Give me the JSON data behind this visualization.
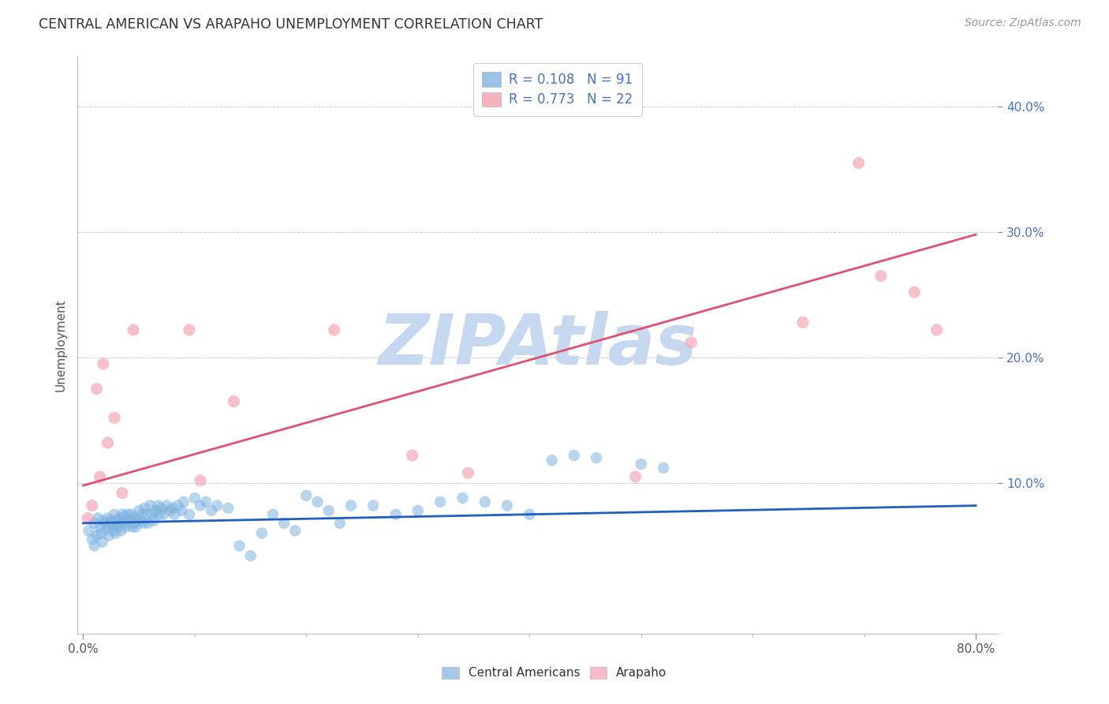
{
  "title": "CENTRAL AMERICAN VS ARAPAHO UNEMPLOYMENT CORRELATION CHART",
  "source": "Source: ZipAtlas.com",
  "ylabel": "Unemployment",
  "xlim": [
    -0.005,
    0.82
  ],
  "ylim": [
    -0.02,
    0.44
  ],
  "ytick_vals": [
    0.1,
    0.2,
    0.3,
    0.4
  ],
  "ytick_labels": [
    "10.0%",
    "20.0%",
    "30.0%",
    "40.0%"
  ],
  "grid_color": "#cccccc",
  "watermark": "ZIPAtlas",
  "watermark_color": "#c5d8f0",
  "blue_R": 0.108,
  "blue_N": 91,
  "pink_R": 0.773,
  "pink_N": 22,
  "blue_color": "#7fb3e0",
  "pink_color": "#f4a0b0",
  "blue_line_color": "#2060c0",
  "pink_line_color": "#e05070",
  "legend_label_blue": "Central Americans",
  "legend_label_pink": "Arapaho",
  "legend_text_color": "#4472c4",
  "blue_scatter_x": [
    0.005,
    0.008,
    0.01,
    0.01,
    0.012,
    0.013,
    0.015,
    0.016,
    0.017,
    0.018,
    0.02,
    0.021,
    0.022,
    0.023,
    0.024,
    0.025,
    0.026,
    0.027,
    0.028,
    0.029,
    0.03,
    0.031,
    0.032,
    0.033,
    0.034,
    0.035,
    0.036,
    0.037,
    0.038,
    0.04,
    0.041,
    0.042,
    0.043,
    0.044,
    0.045,
    0.046,
    0.047,
    0.048,
    0.05,
    0.052,
    0.053,
    0.054,
    0.055,
    0.057,
    0.058,
    0.06,
    0.062,
    0.063,
    0.065,
    0.067,
    0.068,
    0.07,
    0.072,
    0.075,
    0.078,
    0.08,
    0.082,
    0.085,
    0.088,
    0.09,
    0.095,
    0.1,
    0.105,
    0.11,
    0.115,
    0.12,
    0.13,
    0.14,
    0.15,
    0.16,
    0.17,
    0.18,
    0.19,
    0.2,
    0.21,
    0.22,
    0.23,
    0.24,
    0.26,
    0.28,
    0.3,
    0.32,
    0.34,
    0.36,
    0.38,
    0.4,
    0.42,
    0.44,
    0.46,
    0.5,
    0.52
  ],
  "blue_scatter_y": [
    0.062,
    0.055,
    0.068,
    0.05,
    0.058,
    0.072,
    0.065,
    0.06,
    0.053,
    0.07,
    0.068,
    0.063,
    0.072,
    0.058,
    0.065,
    0.07,
    0.068,
    0.062,
    0.075,
    0.06,
    0.07,
    0.065,
    0.072,
    0.068,
    0.062,
    0.075,
    0.068,
    0.073,
    0.065,
    0.075,
    0.07,
    0.068,
    0.075,
    0.065,
    0.072,
    0.068,
    0.065,
    0.072,
    0.078,
    0.07,
    0.075,
    0.068,
    0.08,
    0.075,
    0.068,
    0.082,
    0.075,
    0.07,
    0.078,
    0.082,
    0.075,
    0.08,
    0.075,
    0.082,
    0.078,
    0.08,
    0.075,
    0.082,
    0.078,
    0.085,
    0.075,
    0.088,
    0.082,
    0.085,
    0.078,
    0.082,
    0.08,
    0.05,
    0.042,
    0.06,
    0.075,
    0.068,
    0.062,
    0.09,
    0.085,
    0.078,
    0.068,
    0.082,
    0.082,
    0.075,
    0.078,
    0.085,
    0.088,
    0.085,
    0.082,
    0.075,
    0.118,
    0.122,
    0.12,
    0.115,
    0.112
  ],
  "pink_scatter_x": [
    0.004,
    0.008,
    0.012,
    0.015,
    0.018,
    0.022,
    0.028,
    0.035,
    0.045,
    0.095,
    0.105,
    0.135,
    0.225,
    0.295,
    0.345,
    0.495,
    0.545,
    0.645,
    0.695,
    0.715,
    0.745,
    0.765
  ],
  "pink_scatter_y": [
    0.072,
    0.082,
    0.175,
    0.105,
    0.195,
    0.132,
    0.152,
    0.092,
    0.222,
    0.222,
    0.102,
    0.165,
    0.222,
    0.122,
    0.108,
    0.105,
    0.212,
    0.228,
    0.355,
    0.265,
    0.252,
    0.222
  ],
  "blue_line_x": [
    0.0,
    0.8
  ],
  "blue_line_y": [
    0.068,
    0.082
  ],
  "pink_line_x": [
    0.0,
    0.8
  ],
  "pink_line_y": [
    0.098,
    0.298
  ]
}
